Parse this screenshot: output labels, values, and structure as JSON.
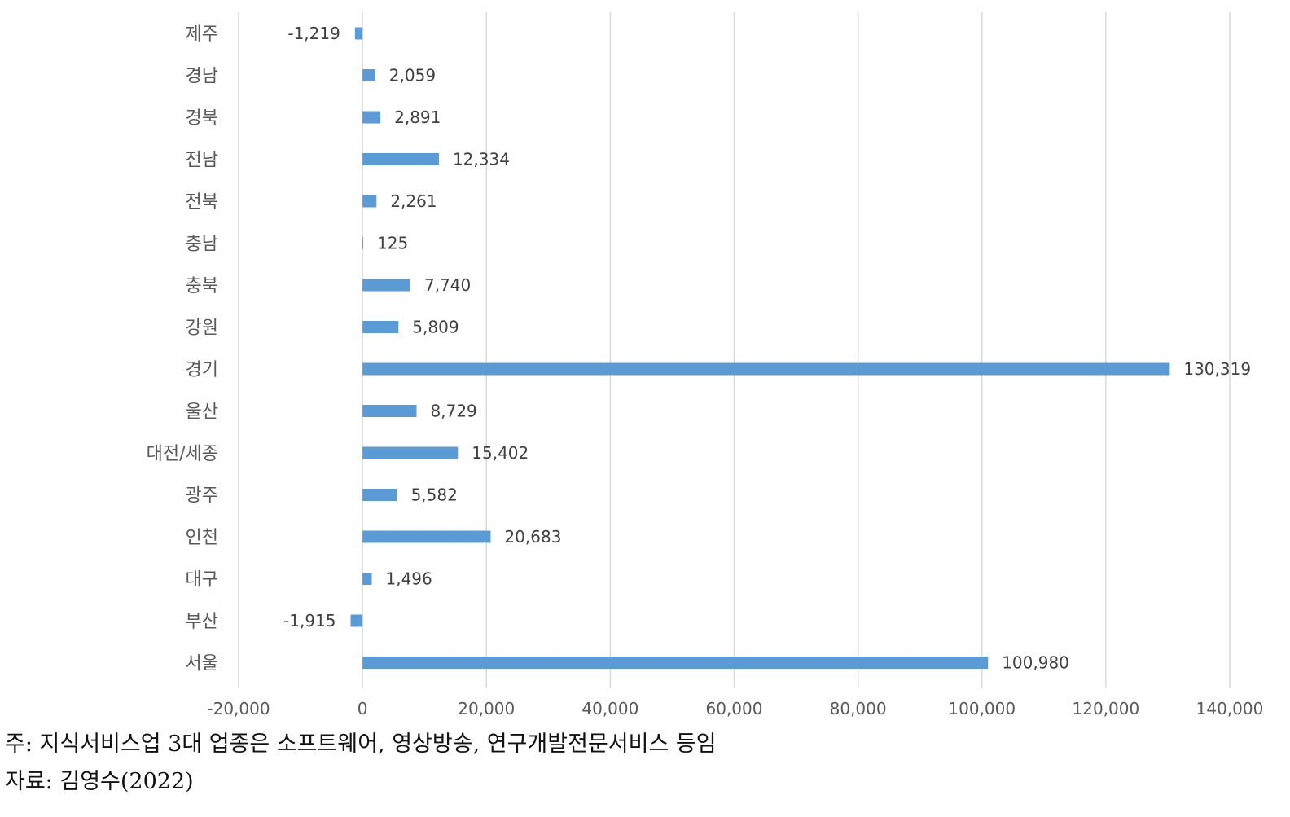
{
  "chart_data": {
    "type": "bar",
    "orientation": "horizontal",
    "categories": [
      "제주",
      "경남",
      "경북",
      "전남",
      "전북",
      "충남",
      "충북",
      "강원",
      "경기",
      "울산",
      "대전/세종",
      "광주",
      "인천",
      "대구",
      "부산",
      "서울"
    ],
    "values": [
      -1219,
      2059,
      2891,
      12334,
      2261,
      125,
      7740,
      5809,
      130319,
      8729,
      15402,
      5582,
      20683,
      1496,
      -1915,
      100980
    ],
    "data_labels": [
      "-1,219",
      "2,059",
      "2,891",
      "12,334",
      "2,261",
      "125",
      "7,740",
      "5,809",
      "130,319",
      "8,729",
      "15,402",
      "5,582",
      "20,683",
      "1,496",
      "-1,915",
      "100,980"
    ],
    "xlim": [
      -20000,
      140000
    ],
    "x_ticks": [
      -20000,
      0,
      20000,
      40000,
      60000,
      80000,
      100000,
      120000,
      140000
    ],
    "x_tick_labels": [
      "-20,000",
      "0",
      "20,000",
      "40,000",
      "60,000",
      "80,000",
      "100,000",
      "120,000",
      "140,000"
    ],
    "grid": "vertical",
    "bar_color": "#5b9bd5",
    "legend": "none"
  },
  "notes": {
    "note": "주: 지식서비스업 3대 업종은 소프트웨어, 영상방송, 연구개발전문서비스 등임",
    "source": "자료: 김영수(2022)"
  }
}
